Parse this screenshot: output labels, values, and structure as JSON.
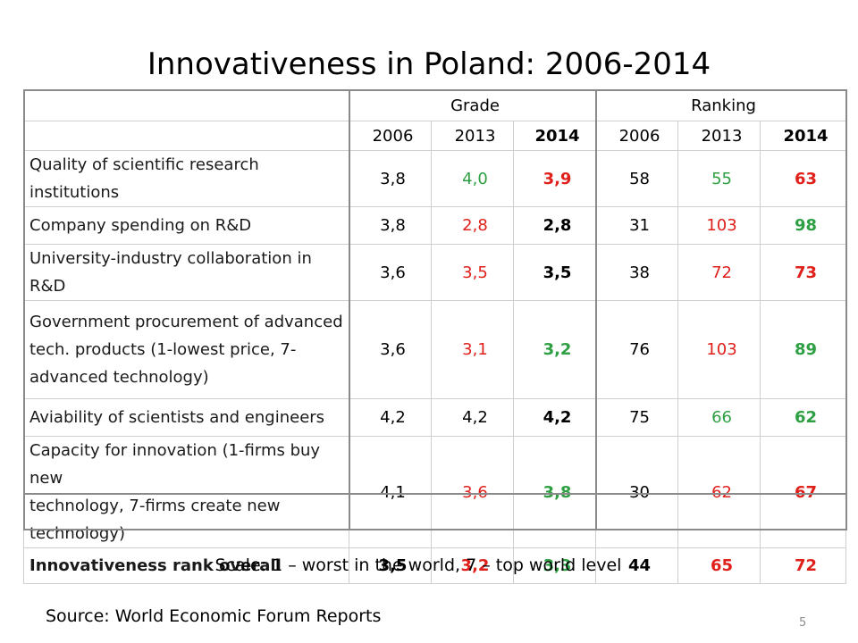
{
  "title": "Innovativeness in Poland: 2006-2014",
  "colors": {
    "neutral": "#1a1a1a",
    "better": "#2ea043",
    "worse": "#e0201b"
  },
  "table": {
    "group_headers": [
      "Grade",
      "Ranking"
    ],
    "year_headers": [
      "2006",
      "2013",
      "2014",
      "2006",
      "2013",
      "2014"
    ],
    "rows": [
      {
        "label": "Quality of scientific research institutions",
        "grade_2006": "3,8",
        "grade_2013": "4,0",
        "grade_2014": "3,9",
        "rank_2006": "58",
        "rank_2013": "55",
        "rank_2014": "63"
      },
      {
        "label": "Company spending on R&D",
        "grade_2006": "3,8",
        "grade_2013": "2,8",
        "grade_2014": "2,8",
        "rank_2006": "31",
        "rank_2013": "103",
        "rank_2014": "98"
      },
      {
        "label": "University-industry collaboration in R&D",
        "grade_2006": "3,6",
        "grade_2013": "3,5",
        "grade_2014": "3,5",
        "rank_2006": "38",
        "rank_2013": "72",
        "rank_2014": "73"
      },
      {
        "label_lines": [
          "Government procurement of advanced",
          "tech. products (1-lowest price, 7-",
          "advanced technology)"
        ],
        "grade_2006": "3,6",
        "grade_2013": "3,1",
        "grade_2014": "3,2",
        "rank_2006": "76",
        "rank_2013": "103",
        "rank_2014": "89"
      },
      {
        "label": "Aviability of scientists and engineers",
        "grade_2006": "4,2",
        "grade_2013": "4,2",
        "grade_2014": "4,2",
        "rank_2006": "75",
        "rank_2013": "66",
        "rank_2014": "62"
      },
      {
        "label_lines": [
          "Capacity for innovation (1-firms buy new",
          "technology, 7-firms create new",
          "technology)"
        ],
        "grade_2006": "4,1",
        "grade_2013": "3,6",
        "grade_2014": "3,8",
        "rank_2006": "30",
        "rank_2013": "62",
        "rank_2014": "67"
      },
      {
        "label": "Innovativeness rank overall",
        "grade_2006": "3,5",
        "grade_2013": "3,2",
        "grade_2014": "3,3",
        "rank_2006": "44",
        "rank_2013": "65",
        "rank_2014": "72"
      }
    ]
  },
  "scale_note": "Scale: 1 – worst in the world, 7 – top world level",
  "source": "Source: World Economic Forum Reports",
  "page_number": "5"
}
